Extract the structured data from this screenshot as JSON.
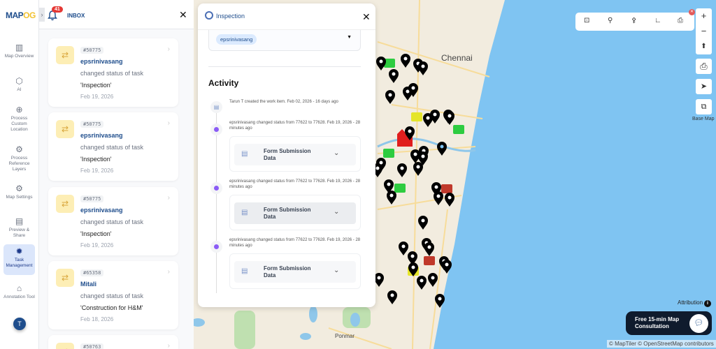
{
  "colors": {
    "brand": "#1e4d8c",
    "sea": "#7fc4f2",
    "land": "#f2ecdf",
    "badge": "#e53935",
    "timeline_dot": "#8b5cf6"
  },
  "sidebar": {
    "logo": {
      "part1": "MAP",
      "part2": "OG"
    },
    "items": [
      {
        "label": "Map Overview",
        "icon": "map-icon"
      },
      {
        "label": "AI",
        "icon": "ai-icon"
      },
      {
        "label": "Process Custom Location",
        "icon": "location-pin-icon"
      },
      {
        "label": "Process Reference Layers",
        "icon": "layers-gear-icon"
      },
      {
        "label": "Map Settings",
        "icon": "gear-icon"
      },
      {
        "label": "Preview & Share",
        "icon": "preview-icon"
      },
      {
        "label": "Task Management",
        "icon": "task-gear-icon",
        "active": true
      },
      {
        "label": "Annotation Tool",
        "icon": "paint-bucket-icon"
      }
    ],
    "avatar": "T"
  },
  "inbox": {
    "title": "INBOX",
    "badge_count": "41",
    "cards": [
      {
        "id": "#50775",
        "user": "epsrinivasang",
        "action": "changed status of task",
        "task": "'Inspection'",
        "date": "Feb 19, 2026"
      },
      {
        "id": "#50775",
        "user": "epsrinivasang",
        "action": "changed status of task",
        "task": "'Inspection'",
        "date": "Feb 19, 2026"
      },
      {
        "id": "#50775",
        "user": "epsrinivasang",
        "action": "changed status of task",
        "task": "'Inspection'",
        "date": "Feb 19, 2026"
      },
      {
        "id": "#65358",
        "user": "Mitali",
        "action": "changed status of task",
        "task": "'Construction for H&M'",
        "date": "Feb 18, 2026"
      },
      {
        "id": "#50763",
        "user": "",
        "action": "",
        "task": "",
        "date": ""
      }
    ]
  },
  "panel": {
    "title": "Inspection",
    "assignee": "epsrinivasang",
    "activity_heading": "Activity",
    "entries": [
      {
        "text": "Tarun T created the work item. Feb 02, 2026 - 16 days ago"
      },
      {
        "text": "epsrinivasang changed status from 77622 to 77628. Feb 19, 2026 - 28 minutes ago",
        "card": "Form Submission Data"
      },
      {
        "text": "epsrinivasang changed status from 77622 to 77628. Feb 19, 2026 - 28 minutes ago",
        "card": "Form Submission Data"
      },
      {
        "text": "epsrinivasang changed status from 77622 to 77628. Feb 19, 2026 - 28 minutes ago",
        "card": "Form Submission Data"
      }
    ]
  },
  "map": {
    "places": [
      "Chennai",
      "Ponmar"
    ],
    "toolbar": [
      "map-search-icon",
      "search-icon",
      "pin-icon",
      "measure-icon",
      "print-icon"
    ],
    "controls": {
      "zoom_in": "+",
      "zoom_out": "−",
      "base_map": "Base Map"
    },
    "attribution": "Attribution",
    "consult": "Free 15-min Map Consultation",
    "copyright": "© MapTiler © OpenStreetMap contributors"
  }
}
